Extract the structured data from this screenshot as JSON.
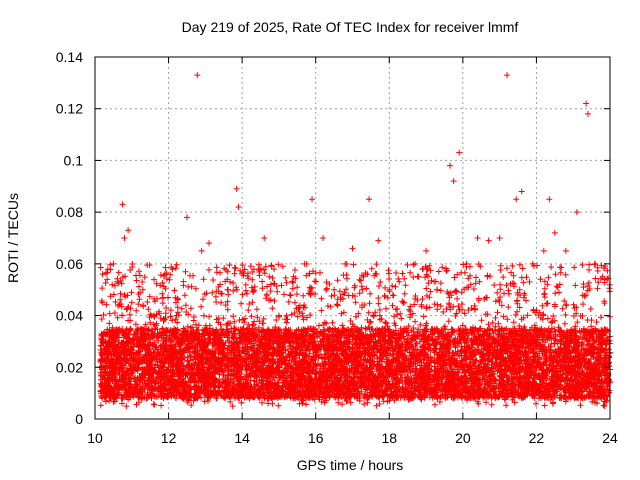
{
  "chart_data": {
    "type": "scatter",
    "title": "Day 219 of 2025, Rate Of TEC Index for receiver lmmf",
    "xlabel": "GPS time / hours",
    "ylabel": "ROTI / TECUs",
    "xlim": [
      10,
      24
    ],
    "ylim": [
      0,
      0.14
    ],
    "xticks": [
      "10",
      "12",
      "14",
      "16",
      "18",
      "20",
      "22",
      "24"
    ],
    "yticks": [
      "0",
      "0.02",
      "0.04",
      "0.06",
      "0.08",
      "0.1",
      "0.12",
      "0.14"
    ],
    "grid": true,
    "marker": "plus",
    "color": "#ff0000",
    "series": [
      {
        "name": "ROTI",
        "x": [
          10.2,
          10.3,
          10.5,
          10.75,
          10.8,
          10.9,
          11.0,
          11.3,
          11.6,
          11.9,
          12.2,
          12.5,
          12.78,
          12.9,
          13.1,
          13.4,
          13.6,
          13.85,
          13.9,
          14.2,
          14.6,
          15.0,
          15.3,
          15.7,
          15.9,
          16.2,
          16.5,
          16.8,
          17.0,
          17.3,
          17.45,
          17.7,
          18.0,
          18.4,
          18.7,
          19.0,
          19.3,
          19.65,
          19.75,
          19.9,
          20.1,
          20.4,
          20.7,
          21.0,
          21.2,
          21.45,
          21.6,
          21.9,
          22.2,
          22.35,
          22.5,
          22.8,
          23.1,
          23.35,
          23.4,
          23.6,
          23.8,
          23.95
        ],
        "y": [
          0.045,
          0.028,
          0.06,
          0.083,
          0.07,
          0.073,
          0.045,
          0.05,
          0.04,
          0.056,
          0.045,
          0.078,
          0.133,
          0.065,
          0.068,
          0.052,
          0.05,
          0.089,
          0.082,
          0.035,
          0.07,
          0.04,
          0.048,
          0.06,
          0.085,
          0.07,
          0.05,
          0.06,
          0.066,
          0.055,
          0.085,
          0.069,
          0.05,
          0.045,
          0.06,
          0.065,
          0.05,
          0.098,
          0.092,
          0.103,
          0.06,
          0.07,
          0.069,
          0.07,
          0.133,
          0.085,
          0.088,
          0.06,
          0.065,
          0.085,
          0.072,
          0.065,
          0.08,
          0.122,
          0.118,
          0.06,
          0.055,
          0.03
        ],
        "dense_band": {
          "x_from": 10.15,
          "x_to": 24.0,
          "y_core": [
            0.008,
            0.035
          ],
          "y_spread": [
            0.005,
            0.06
          ]
        }
      }
    ]
  }
}
